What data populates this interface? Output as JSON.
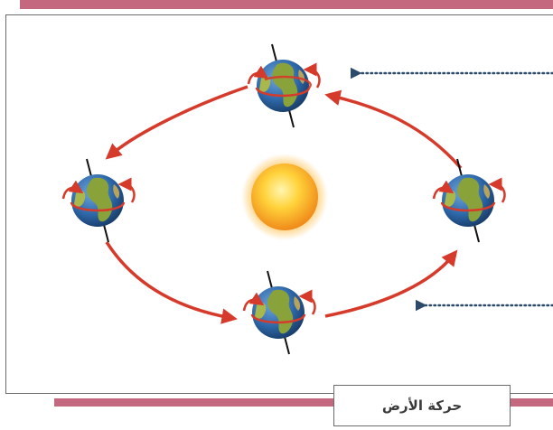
{
  "figure": {
    "caption": "حركة الأرض",
    "colors": {
      "band": "#c4687f",
      "frame": "#6b6b6b",
      "orbit_arrow": "#d63a2a",
      "pointer": "#2c4a6a",
      "ocean": "#2e67a8",
      "land": "#8aa23a",
      "sun_core": "#ffd23a",
      "sun_edge": "#f08a1a"
    },
    "icons": {
      "sun": "sun-icon",
      "earth": "earth-globe-icon",
      "rotation": "rotation-arrow-icon",
      "orbit": "orbit-arrow-icon",
      "pointer": "dotted-pointer-arrow-icon"
    }
  }
}
